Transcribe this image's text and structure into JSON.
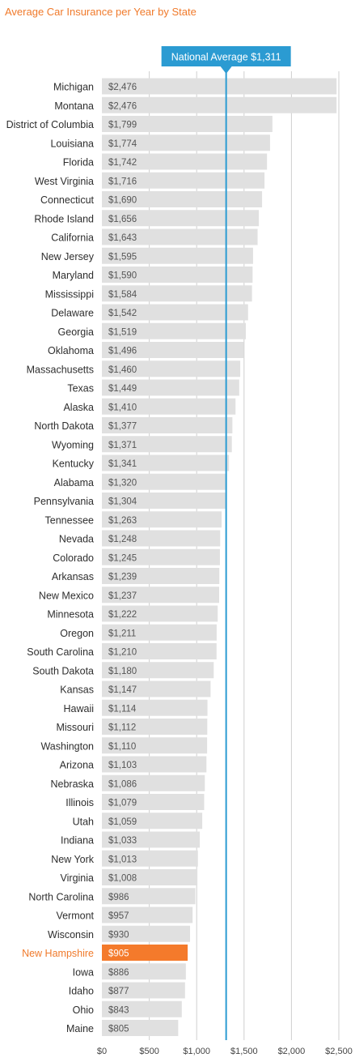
{
  "chart_data": {
    "type": "bar",
    "orientation": "horizontal",
    "title": "Average Car Insurance per Year by State",
    "categories": [
      "Michigan",
      "Montana",
      "District of Columbia",
      "Louisiana",
      "Florida",
      "West Virginia",
      "Connecticut",
      "Rhode Island",
      "California",
      "New Jersey",
      "Maryland",
      "Mississippi",
      "Delaware",
      "Georgia",
      "Oklahoma",
      "Massachusetts",
      "Texas",
      "Alaska",
      "North Dakota",
      "Wyoming",
      "Kentucky",
      "Alabama",
      "Pennsylvania",
      "Tennessee",
      "Nevada",
      "Colorado",
      "Arkansas",
      "New Mexico",
      "Minnesota",
      "Oregon",
      "South Carolina",
      "South Dakota",
      "Kansas",
      "Hawaii",
      "Missouri",
      "Washington",
      "Arizona",
      "Nebraska",
      "Illinois",
      "Utah",
      "Indiana",
      "New York",
      "Virginia",
      "North Carolina",
      "Vermont",
      "Wisconsin",
      "New Hampshire",
      "Iowa",
      "Idaho",
      "Ohio",
      "Maine"
    ],
    "values": [
      2476,
      2476,
      1799,
      1774,
      1742,
      1716,
      1690,
      1656,
      1643,
      1595,
      1590,
      1584,
      1542,
      1519,
      1496,
      1460,
      1449,
      1410,
      1377,
      1371,
      1341,
      1320,
      1304,
      1263,
      1248,
      1245,
      1239,
      1237,
      1222,
      1211,
      1210,
      1180,
      1147,
      1114,
      1112,
      1110,
      1103,
      1086,
      1079,
      1059,
      1033,
      1013,
      1008,
      986,
      957,
      930,
      905,
      886,
      877,
      843,
      805
    ],
    "value_labels": [
      "$2,476",
      "$2,476",
      "$1,799",
      "$1,774",
      "$1,742",
      "$1,716",
      "$1,690",
      "$1,656",
      "$1,643",
      "$1,595",
      "$1,590",
      "$1,584",
      "$1,542",
      "$1,519",
      "$1,496",
      "$1,460",
      "$1,449",
      "$1,410",
      "$1,377",
      "$1,371",
      "$1,341",
      "$1,320",
      "$1,304",
      "$1,263",
      "$1,248",
      "$1,245",
      "$1,239",
      "$1,237",
      "$1,222",
      "$1,211",
      "$1,210",
      "$1,180",
      "$1,147",
      "$1,114",
      "$1,112",
      "$1,110",
      "$1,103",
      "$1,086",
      "$1,079",
      "$1,059",
      "$1,033",
      "$1,013",
      "$1,008",
      "$986",
      "$957",
      "$930",
      "$905",
      "$886",
      "$877",
      "$843",
      "$805"
    ],
    "highlight": "New Hampshire",
    "reference_line": {
      "label": "National Average $1,311",
      "value": 1311
    },
    "xlim": [
      0,
      2500
    ],
    "xticks": [
      0,
      500,
      1000,
      1500,
      2000,
      2500
    ],
    "xtick_labels": [
      "$0",
      "$500",
      "$1,000",
      "$1,500",
      "$2,000",
      "$2,500"
    ],
    "grid": true,
    "colors": {
      "bar": "#e0e0e0",
      "highlight": "#f47a2b",
      "reference": "#2b9bd2",
      "grid": "#cfcfcf",
      "title": "#f07a2b"
    }
  }
}
